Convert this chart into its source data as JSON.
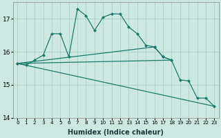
{
  "xlabel": "Humidex (Indice chaleur)",
  "background_color": "#cce8e0",
  "grid_color": "#aacfc8",
  "line_color": "#1a7a6a",
  "x_values": [
    0,
    1,
    2,
    3,
    4,
    5,
    6,
    7,
    8,
    9,
    10,
    11,
    12,
    13,
    14,
    15,
    16,
    17,
    18,
    19,
    20,
    21,
    22,
    23
  ],
  "series_main": [
    15.65,
    15.6,
    15.75,
    15.9,
    16.55,
    16.55,
    15.85,
    17.3,
    17.1,
    16.65,
    17.05,
    17.15,
    17.15,
    16.75,
    16.55,
    16.2,
    16.15,
    15.85,
    15.75,
    null,
    null,
    null,
    null,
    null
  ],
  "series_decline_markers": [
    15.65,
    null,
    null,
    null,
    null,
    null,
    null,
    null,
    null,
    null,
    null,
    null,
    null,
    null,
    null,
    null,
    16.15,
    15.85,
    15.75,
    15.15,
    15.12,
    14.6,
    14.6,
    14.35
  ],
  "series_line_flat": [
    [
      0,
      15.65
    ],
    [
      18,
      15.75
    ]
  ],
  "series_line_decline": [
    [
      0,
      15.65
    ],
    [
      23,
      14.35
    ]
  ],
  "ylim": [
    14.0,
    17.5
  ],
  "xlim": [
    -0.5,
    23.5
  ],
  "yticks": [
    14,
    15,
    16,
    17
  ],
  "xticks": [
    0,
    1,
    2,
    3,
    4,
    5,
    6,
    7,
    8,
    9,
    10,
    11,
    12,
    13,
    14,
    15,
    16,
    17,
    18,
    19,
    20,
    21,
    22,
    23
  ]
}
